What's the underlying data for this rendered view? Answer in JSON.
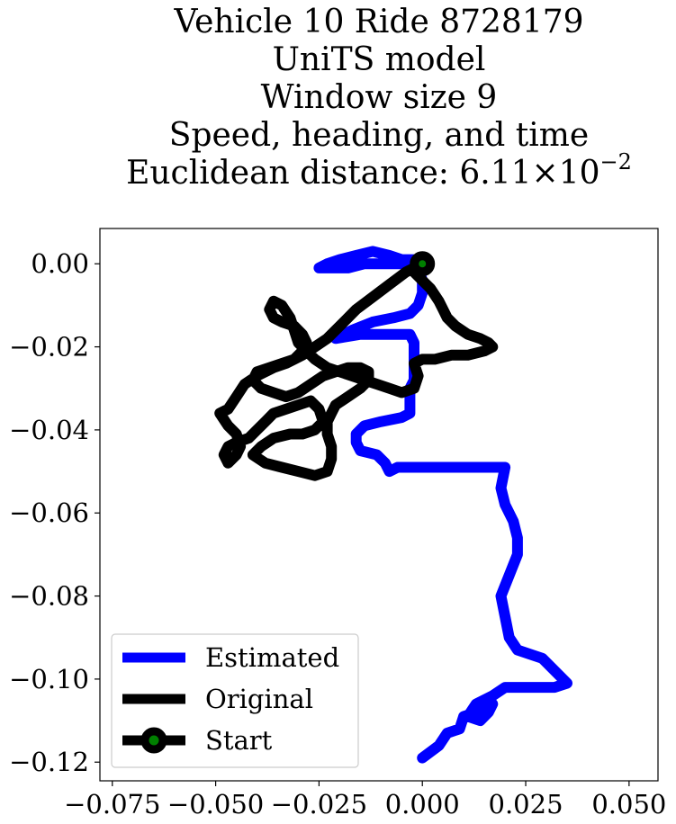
{
  "chart_data": {
    "type": "line",
    "title_lines": [
      "Vehicle 10 Ride 8728179",
      "UniTS model",
      "Window size 9",
      "Speed, heading, and time"
    ],
    "title_distance_prefix": "Euclidean distance: ",
    "title_distance_mantissa": "6.11",
    "title_distance_times": "×",
    "title_distance_base": "10",
    "title_distance_exponent": "−2",
    "xlim": [
      -0.078,
      0.057
    ],
    "ylim": [
      -0.1245,
      0.0085
    ],
    "xticks": [
      -0.075,
      -0.05,
      -0.025,
      0.0,
      0.025,
      0.05
    ],
    "xtick_labels": [
      "−0.075",
      "−0.050",
      "−0.025",
      "0.000",
      "0.025",
      "0.050"
    ],
    "yticks": [
      0.0,
      -0.02,
      -0.04,
      -0.06,
      -0.08,
      -0.1,
      -0.12
    ],
    "ytick_labels": [
      "0.00",
      "−0.02",
      "−0.04",
      "−0.06",
      "−0.08",
      "−0.10",
      "−0.12"
    ],
    "grid": false,
    "legend_position": "lower-left",
    "series": [
      {
        "name": "Estimated",
        "color": "#0000ff",
        "points": [
          [
            0.0,
            -0.119
          ],
          [
            0.004,
            -0.116
          ],
          [
            0.006,
            -0.113
          ],
          [
            0.009,
            -0.112
          ],
          [
            0.01,
            -0.109
          ],
          [
            0.013,
            -0.108
          ],
          [
            0.015,
            -0.107
          ],
          [
            0.017,
            -0.106
          ],
          [
            0.016,
            -0.108
          ],
          [
            0.014,
            -0.11
          ],
          [
            0.011,
            -0.109
          ],
          [
            0.013,
            -0.106
          ],
          [
            0.017,
            -0.104
          ],
          [
            0.02,
            -0.102
          ],
          [
            0.026,
            -0.102
          ],
          [
            0.032,
            -0.102
          ],
          [
            0.035,
            -0.101
          ],
          [
            0.031,
            -0.097
          ],
          [
            0.029,
            -0.095
          ],
          [
            0.026,
            -0.094
          ],
          [
            0.023,
            -0.093
          ],
          [
            0.021,
            -0.09
          ],
          [
            0.02,
            -0.085
          ],
          [
            0.019,
            -0.08
          ],
          [
            0.021,
            -0.075
          ],
          [
            0.023,
            -0.07
          ],
          [
            0.023,
            -0.066
          ],
          [
            0.022,
            -0.062
          ],
          [
            0.02,
            -0.058
          ],
          [
            0.019,
            -0.054
          ],
          [
            0.02,
            -0.049
          ],
          [
            0.014,
            -0.049
          ],
          [
            0.007,
            -0.049
          ],
          [
            0.0,
            -0.049
          ],
          [
            -0.006,
            -0.049
          ],
          [
            -0.008,
            -0.05
          ],
          [
            -0.009,
            -0.048
          ],
          [
            -0.011,
            -0.046
          ],
          [
            -0.015,
            -0.045
          ],
          [
            -0.016,
            -0.043
          ],
          [
            -0.016,
            -0.041
          ],
          [
            -0.014,
            -0.039
          ],
          [
            -0.01,
            -0.038
          ],
          [
            -0.005,
            -0.037
          ],
          [
            -0.003,
            -0.036
          ],
          [
            -0.003,
            -0.033
          ],
          [
            -0.003,
            -0.03
          ],
          [
            -0.002,
            -0.028
          ],
          [
            -0.002,
            -0.025
          ],
          [
            -0.002,
            -0.022
          ],
          [
            -0.002,
            -0.019
          ],
          [
            -0.003,
            -0.017
          ],
          [
            -0.01,
            -0.017
          ],
          [
            -0.015,
            -0.017
          ],
          [
            -0.021,
            -0.018
          ],
          [
            -0.017,
            -0.016
          ],
          [
            -0.012,
            -0.014
          ],
          [
            -0.007,
            -0.013
          ],
          [
            -0.003,
            -0.012
          ],
          [
            -0.001,
            -0.01
          ],
          [
            0.0,
            -0.007
          ],
          [
            0.0,
            -0.004
          ],
          [
            -0.001,
            -0.001
          ],
          [
            -0.005,
            0.0
          ],
          [
            -0.01,
            0.0
          ],
          [
            -0.014,
            0.0
          ],
          [
            -0.018,
            -0.001
          ],
          [
            -0.022,
            -0.001
          ],
          [
            -0.025,
            -0.001
          ],
          [
            -0.023,
            0.0
          ],
          [
            -0.02,
            0.001
          ],
          [
            -0.016,
            0.002
          ],
          [
            -0.012,
            0.003
          ],
          [
            -0.008,
            0.002
          ],
          [
            -0.005,
            0.001
          ],
          [
            -0.002,
            0.001
          ],
          [
            0.0,
            0.0
          ]
        ]
      },
      {
        "name": "Original",
        "color": "#000000",
        "points": [
          [
            0.0,
            0.0
          ],
          [
            -0.004,
            -0.002
          ],
          [
            -0.008,
            -0.005
          ],
          [
            -0.012,
            -0.008
          ],
          [
            -0.016,
            -0.011
          ],
          [
            -0.02,
            -0.015
          ],
          [
            -0.023,
            -0.018
          ],
          [
            -0.026,
            -0.02
          ],
          [
            -0.029,
            -0.022
          ],
          [
            -0.031,
            -0.023
          ],
          [
            -0.033,
            -0.024
          ],
          [
            -0.036,
            -0.025
          ],
          [
            -0.04,
            -0.027
          ],
          [
            -0.043,
            -0.029
          ],
          [
            -0.045,
            -0.032
          ],
          [
            -0.047,
            -0.035
          ],
          [
            -0.049,
            -0.036
          ],
          [
            -0.047,
            -0.039
          ],
          [
            -0.045,
            -0.041
          ],
          [
            -0.044,
            -0.044
          ],
          [
            -0.045,
            -0.046
          ],
          [
            -0.047,
            -0.048
          ],
          [
            -0.048,
            -0.046
          ],
          [
            -0.047,
            -0.044
          ],
          [
            -0.045,
            -0.043
          ],
          [
            -0.042,
            -0.042
          ],
          [
            -0.04,
            -0.04
          ],
          [
            -0.038,
            -0.038
          ],
          [
            -0.036,
            -0.036
          ],
          [
            -0.033,
            -0.035
          ],
          [
            -0.03,
            -0.034
          ],
          [
            -0.027,
            -0.033
          ],
          [
            -0.025,
            -0.035
          ],
          [
            -0.024,
            -0.038
          ],
          [
            -0.026,
            -0.04
          ],
          [
            -0.029,
            -0.041
          ],
          [
            -0.032,
            -0.041
          ],
          [
            -0.036,
            -0.042
          ],
          [
            -0.039,
            -0.044
          ],
          [
            -0.041,
            -0.046
          ],
          [
            -0.038,
            -0.048
          ],
          [
            -0.034,
            -0.049
          ],
          [
            -0.03,
            -0.05
          ],
          [
            -0.026,
            -0.051
          ],
          [
            -0.023,
            -0.05
          ],
          [
            -0.022,
            -0.047
          ],
          [
            -0.022,
            -0.044
          ],
          [
            -0.023,
            -0.041
          ],
          [
            -0.023,
            -0.038
          ],
          [
            -0.022,
            -0.036
          ],
          [
            -0.021,
            -0.034
          ],
          [
            -0.018,
            -0.032
          ],
          [
            -0.015,
            -0.03
          ],
          [
            -0.013,
            -0.028
          ],
          [
            -0.013,
            -0.026
          ],
          [
            -0.015,
            -0.025
          ],
          [
            -0.018,
            -0.025
          ],
          [
            -0.021,
            -0.026
          ],
          [
            -0.024,
            -0.027
          ],
          [
            -0.027,
            -0.029
          ],
          [
            -0.03,
            -0.031
          ],
          [
            -0.033,
            -0.032
          ],
          [
            -0.036,
            -0.031
          ],
          [
            -0.039,
            -0.03
          ],
          [
            -0.041,
            -0.028
          ],
          [
            -0.04,
            -0.026
          ],
          [
            -0.037,
            -0.025
          ],
          [
            -0.034,
            -0.024
          ],
          [
            -0.031,
            -0.023
          ],
          [
            -0.029,
            -0.021
          ],
          [
            -0.028,
            -0.019
          ],
          [
            -0.029,
            -0.017
          ],
          [
            -0.031,
            -0.015
          ],
          [
            -0.034,
            -0.014
          ],
          [
            -0.036,
            -0.013
          ],
          [
            -0.037,
            -0.011
          ],
          [
            -0.036,
            -0.009
          ],
          [
            -0.034,
            -0.01
          ],
          [
            -0.032,
            -0.013
          ],
          [
            -0.031,
            -0.016
          ],
          [
            -0.03,
            -0.019
          ],
          [
            -0.028,
            -0.021
          ],
          [
            -0.026,
            -0.023
          ],
          [
            -0.023,
            -0.025
          ],
          [
            -0.02,
            -0.026
          ],
          [
            -0.017,
            -0.027
          ],
          [
            -0.014,
            -0.028
          ],
          [
            -0.011,
            -0.029
          ],
          [
            -0.008,
            -0.03
          ],
          [
            -0.005,
            -0.031
          ],
          [
            -0.002,
            -0.03
          ],
          [
            -0.001,
            -0.027
          ],
          [
            -0.002,
            -0.024
          ],
          [
            0.0,
            -0.023
          ],
          [
            0.003,
            -0.023
          ],
          [
            0.007,
            -0.022
          ],
          [
            0.011,
            -0.022
          ],
          [
            0.015,
            -0.021
          ],
          [
            0.017,
            -0.02
          ],
          [
            0.016,
            -0.019
          ],
          [
            0.014,
            -0.018
          ],
          [
            0.011,
            -0.017
          ],
          [
            0.008,
            -0.015
          ],
          [
            0.006,
            -0.013
          ],
          [
            0.005,
            -0.011
          ],
          [
            0.004,
            -0.009
          ],
          [
            0.002,
            -0.006
          ],
          [
            0.0,
            -0.004
          ],
          [
            -0.002,
            -0.002
          ],
          [
            0.0,
            0.0
          ]
        ]
      }
    ],
    "start_point": {
      "name": "Start",
      "x": 0.0,
      "y": 0.0,
      "marker_color": "#008000",
      "edge_color": "#000000"
    },
    "legend": [
      {
        "label": "Estimated",
        "color": "#0000ff",
        "marker": false
      },
      {
        "label": "Original",
        "color": "#000000",
        "marker": false
      },
      {
        "label": "Start",
        "color": "#000000",
        "marker": true,
        "marker_color": "#008000"
      }
    ]
  }
}
